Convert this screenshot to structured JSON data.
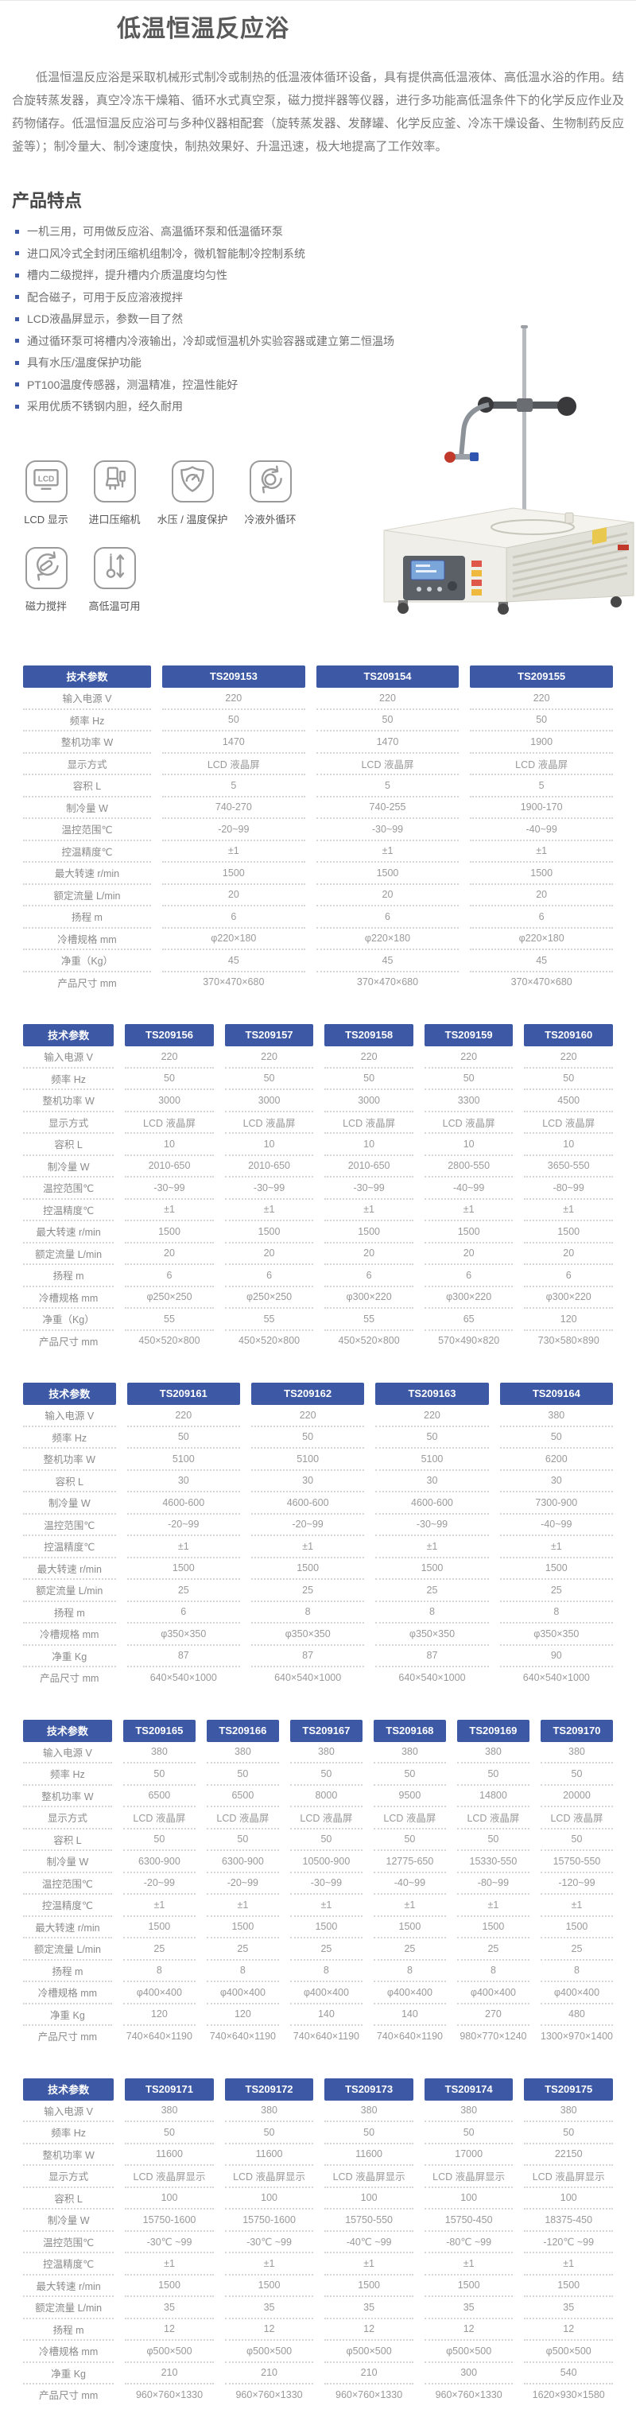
{
  "page": {
    "title": "低温恒温反应浴",
    "intro": "低温恒温反应浴是采取机械形式制冷或制热的低温液体循环设备，具有提供高低温液体、高低温水浴的作用。结合旋转蒸发器，真空冷冻干燥箱、循环水式真空泵，磁力搅拌器等仪器，进行多功能高低温条件下的化学反应作业及药物储存。低温恒温反应浴可与多种仪器相配套（旋转蒸发器、发酵罐、化学反应釜、冷冻干燥设备、生物制药反应釜等）；制冷量大、制冷速度快，制热效果好、升温迅速，极大地提高了工作效率。"
  },
  "features": {
    "heading": "产品特点",
    "items": [
      "一机三用，可用做反应浴、高温循环泵和低温循环泵",
      "进口风冷式全封闭压缩机组制冷，微机智能制冷控制系统",
      "槽内二级搅拌，提升槽内介质温度均匀性",
      "配合磁子，可用于反应溶液搅拌",
      "LCD液晶屏显示，参数一目了然",
      "通过循环泵可将槽内冷液输出，冷却或恒温机外实验容器或建立第二恒温场",
      "具有水压/温度保护功能",
      "PT100温度传感器，测温精准，控温性能好",
      "采用优质不锈钢内胆，经久耐用"
    ]
  },
  "badges": {
    "items": [
      {
        "icon": "lcd-display-icon",
        "label": "LCD 显示"
      },
      {
        "icon": "compressor-icon",
        "label": "进口压缩机"
      },
      {
        "icon": "pressure-temp-protection-icon",
        "label": "水压 / 温度保护"
      },
      {
        "icon": "coolant-external-circulation-icon",
        "label": "冷液外循环"
      },
      {
        "icon": "magnetic-stir-icon",
        "label": "磁力搅拌"
      },
      {
        "icon": "high-low-temp-icon",
        "label": "高低温可用"
      }
    ]
  },
  "colors": {
    "accent": "#3d59a5",
    "value_text": "#9a9a9a"
  },
  "tables": [
    {
      "param_header": "技术参数",
      "models": [
        "TS209153",
        "TS209154",
        "TS209155"
      ],
      "rows": [
        {
          "label": "输入电源 V",
          "values": [
            "220",
            "220",
            "220"
          ]
        },
        {
          "label": "频率 Hz",
          "values": [
            "50",
            "50",
            "50"
          ]
        },
        {
          "label": "整机功率 W",
          "values": [
            "1470",
            "1470",
            "1900"
          ]
        },
        {
          "label": "显示方式",
          "values": [
            "LCD 液晶屏",
            "LCD 液晶屏",
            "LCD 液晶屏"
          ]
        },
        {
          "label": "容积 L",
          "values": [
            "5",
            "5",
            "5"
          ]
        },
        {
          "label": "制冷量 W",
          "values": [
            "740-270",
            "740-255",
            "1900-170"
          ]
        },
        {
          "label": "温控范围℃",
          "values": [
            "-20~99",
            "-30~99",
            "-40~99"
          ]
        },
        {
          "label": "控温精度℃",
          "values": [
            "±1",
            "±1",
            "±1"
          ]
        },
        {
          "label": "最大转速 r/min",
          "values": [
            "1500",
            "1500",
            "1500"
          ]
        },
        {
          "label": "额定流量 L/min",
          "values": [
            "20",
            "20",
            "20"
          ]
        },
        {
          "label": "扬程 m",
          "values": [
            "6",
            "6",
            "6"
          ]
        },
        {
          "label": "冷槽规格 mm",
          "values": [
            "φ220×180",
            "φ220×180",
            "φ220×180"
          ]
        },
        {
          "label": "净重（Kg）",
          "values": [
            "45",
            "45",
            "45"
          ]
        },
        {
          "label": "产品尺寸 mm",
          "values": [
            "370×470×680",
            "370×470×680",
            "370×470×680"
          ]
        }
      ]
    },
    {
      "param_header": "技术参数",
      "models": [
        "TS209156",
        "TS209157",
        "TS209158",
        "TS209159",
        "TS209160"
      ],
      "rows": [
        {
          "label": "输入电源 V",
          "values": [
            "220",
            "220",
            "220",
            "220",
            "220"
          ]
        },
        {
          "label": "频率 Hz",
          "values": [
            "50",
            "50",
            "50",
            "50",
            "50"
          ]
        },
        {
          "label": "整机功率 W",
          "values": [
            "3000",
            "3000",
            "3000",
            "3300",
            "4500"
          ]
        },
        {
          "label": "显示方式",
          "values": [
            "LCD 液晶屏",
            "LCD 液晶屏",
            "LCD 液晶屏",
            "LCD 液晶屏",
            "LCD 液晶屏"
          ]
        },
        {
          "label": "容积 L",
          "values": [
            "10",
            "10",
            "10",
            "10",
            "10"
          ]
        },
        {
          "label": "制冷量 W",
          "values": [
            "2010-650",
            "2010-650",
            "2010-650",
            "2800-550",
            "3650-550"
          ]
        },
        {
          "label": "温控范围℃",
          "values": [
            "-30~99",
            "-30~99",
            "-30~99",
            "-40~99",
            "-80~99"
          ]
        },
        {
          "label": "控温精度℃",
          "values": [
            "±1",
            "±1",
            "±1",
            "±1",
            "±1"
          ]
        },
        {
          "label": "最大转速 r/min",
          "values": [
            "1500",
            "1500",
            "1500",
            "1500",
            "1500"
          ]
        },
        {
          "label": "额定流量 L/min",
          "values": [
            "20",
            "20",
            "20",
            "20",
            "20"
          ]
        },
        {
          "label": "扬程 m",
          "values": [
            "6",
            "6",
            "6",
            "6",
            "6"
          ]
        },
        {
          "label": "冷槽规格 mm",
          "values": [
            "φ250×250",
            "φ250×250",
            "φ300×220",
            "φ300×220",
            "φ300×220"
          ]
        },
        {
          "label": "净重（Kg）",
          "values": [
            "55",
            "55",
            "55",
            "65",
            "120"
          ]
        },
        {
          "label": "产品尺寸 mm",
          "values": [
            "450×520×800",
            "450×520×800",
            "450×520×800",
            "570×490×820",
            "730×580×890"
          ]
        }
      ]
    },
    {
      "param_header": "技术参数",
      "models": [
        "TS209161",
        "TS209162",
        "TS209163",
        "TS209164"
      ],
      "rows": [
        {
          "label": "输入电源 V",
          "values": [
            "220",
            "220",
            "220",
            "380"
          ]
        },
        {
          "label": "频率 Hz",
          "values": [
            "50",
            "50",
            "50",
            "50"
          ]
        },
        {
          "label": "整机功率 W",
          "values": [
            "5100",
            "5100",
            "5100",
            "6200"
          ]
        },
        {
          "label": "容积 L",
          "values": [
            "30",
            "30",
            "30",
            "30"
          ]
        },
        {
          "label": "制冷量 W",
          "values": [
            "4600-600",
            "4600-600",
            "4600-600",
            "7300-900"
          ]
        },
        {
          "label": "温控范围℃",
          "values": [
            "-20~99",
            "-20~99",
            "-30~99",
            "-40~99"
          ]
        },
        {
          "label": "控温精度℃",
          "values": [
            "±1",
            "±1",
            "±1",
            "±1"
          ]
        },
        {
          "label": "最大转速 r/min",
          "values": [
            "1500",
            "1500",
            "1500",
            "1500"
          ]
        },
        {
          "label": "额定流量 L/min",
          "values": [
            "25",
            "25",
            "25",
            "25"
          ]
        },
        {
          "label": "扬程 m",
          "values": [
            "6",
            "8",
            "8",
            "8"
          ]
        },
        {
          "label": "冷槽规格 mm",
          "values": [
            "φ350×350",
            "φ350×350",
            "φ350×350",
            "φ350×350"
          ]
        },
        {
          "label": "净重 Kg",
          "values": [
            "87",
            "87",
            "87",
            "90"
          ]
        },
        {
          "label": "产品尺寸 mm",
          "values": [
            "640×540×1000",
            "640×540×1000",
            "640×540×1000",
            "640×540×1000"
          ]
        }
      ]
    },
    {
      "param_header": "技术参数",
      "models": [
        "TS209165",
        "TS209166",
        "TS209167",
        "TS209168",
        "TS209169",
        "TS209170"
      ],
      "rows": [
        {
          "label": "输入电源 V",
          "values": [
            "380",
            "380",
            "380",
            "380",
            "380",
            "380"
          ]
        },
        {
          "label": "频率 Hz",
          "values": [
            "50",
            "50",
            "50",
            "50",
            "50",
            "50"
          ]
        },
        {
          "label": "整机功率 W",
          "values": [
            "6500",
            "6500",
            "8000",
            "9500",
            "14800",
            "20000"
          ]
        },
        {
          "label": "显示方式",
          "values": [
            "LCD 液晶屏",
            "LCD 液晶屏",
            "LCD 液晶屏",
            "LCD 液晶屏",
            "LCD 液晶屏",
            "LCD 液晶屏"
          ]
        },
        {
          "label": "容积 L",
          "values": [
            "50",
            "50",
            "50",
            "50",
            "50",
            "50"
          ]
        },
        {
          "label": "制冷量 W",
          "values": [
            "6300-900",
            "6300-900",
            "10500-900",
            "12775-650",
            "15330-550",
            "15750-550"
          ]
        },
        {
          "label": "温控范围℃",
          "values": [
            "-20~99",
            "-20~99",
            "-30~99",
            "-40~99",
            "-80~99",
            "-120~99"
          ]
        },
        {
          "label": "控温精度℃",
          "values": [
            "±1",
            "±1",
            "±1",
            "±1",
            "±1",
            "±1"
          ]
        },
        {
          "label": "最大转速 r/min",
          "values": [
            "1500",
            "1500",
            "1500",
            "1500",
            "1500",
            "1500"
          ]
        },
        {
          "label": "额定流量 L/min",
          "values": [
            "25",
            "25",
            "25",
            "25",
            "25",
            "25"
          ]
        },
        {
          "label": "扬程 m",
          "values": [
            "8",
            "8",
            "8",
            "8",
            "8",
            "8"
          ]
        },
        {
          "label": "冷槽规格 mm",
          "values": [
            "φ400×400",
            "φ400×400",
            "φ400×400",
            "φ400×400",
            "φ400×400",
            "φ400×400"
          ]
        },
        {
          "label": "净重 Kg",
          "values": [
            "120",
            "120",
            "140",
            "140",
            "270",
            "480"
          ]
        },
        {
          "label": "产品尺寸 mm",
          "values": [
            "740×640×1190",
            "740×640×1190",
            "740×640×1190",
            "740×640×1190",
            "980×770×1240",
            "1300×970×1400"
          ]
        }
      ]
    },
    {
      "param_header": "技术参数",
      "models": [
        "TS209171",
        "TS209172",
        "TS209173",
        "TS209174",
        "TS209175"
      ],
      "rows": [
        {
          "label": "输入电源 V",
          "values": [
            "380",
            "380",
            "380",
            "380",
            "380"
          ]
        },
        {
          "label": "频率 Hz",
          "values": [
            "50",
            "50",
            "50",
            "50",
            "50"
          ]
        },
        {
          "label": "整机功率 W",
          "values": [
            "11600",
            "11600",
            "11600",
            "17000",
            "22150"
          ]
        },
        {
          "label": "显示方式",
          "values": [
            "LCD 液晶屏显示",
            "LCD 液晶屏显示",
            "LCD 液晶屏显示",
            "LCD 液晶屏显示",
            "LCD 液晶屏显示"
          ]
        },
        {
          "label": "容积 L",
          "values": [
            "100",
            "100",
            "100",
            "100",
            "100"
          ]
        },
        {
          "label": "制冷量 W",
          "values": [
            "15750-1600",
            "15750-1600",
            "15750-550",
            "15750-450",
            "18375-450"
          ]
        },
        {
          "label": "温控范围℃",
          "values": [
            "-30℃ ~99",
            "-30℃ ~99",
            "-40℃ ~99",
            "-80℃ ~99",
            "-120℃ ~99"
          ]
        },
        {
          "label": "控温精度℃",
          "values": [
            "±1",
            "±1",
            "±1",
            "±1",
            "±1"
          ]
        },
        {
          "label": "最大转速 r/min",
          "values": [
            "1500",
            "1500",
            "1500",
            "1500",
            "1500"
          ]
        },
        {
          "label": "额定流量 L/min",
          "values": [
            "35",
            "35",
            "35",
            "35",
            "35"
          ]
        },
        {
          "label": "扬程 m",
          "values": [
            "12",
            "12",
            "12",
            "12",
            "12"
          ]
        },
        {
          "label": "冷槽规格 mm",
          "values": [
            "φ500×500",
            "φ500×500",
            "φ500×500",
            "φ500×500",
            "φ500×500"
          ]
        },
        {
          "label": "净重 Kg",
          "values": [
            "210",
            "210",
            "210",
            "300",
            "540"
          ]
        },
        {
          "label": "产品尺寸 mm",
          "values": [
            "960×760×1330",
            "960×760×1330",
            "960×760×1330",
            "960×760×1330",
            "1620×930×1580"
          ]
        }
      ]
    }
  ]
}
